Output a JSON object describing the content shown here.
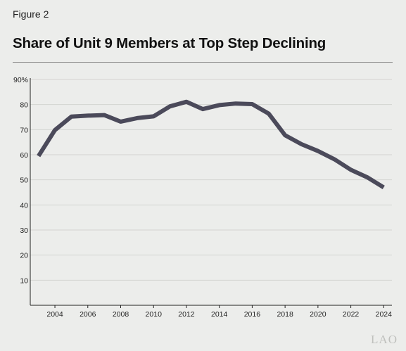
{
  "figure_label": "Figure 2",
  "watermark": "LAO",
  "chart_data": {
    "type": "line",
    "title": "Share of Unit 9 Members at Top Step Declining",
    "xlabel": "",
    "ylabel": "",
    "x": [
      2003,
      2004,
      2005,
      2006,
      2007,
      2008,
      2009,
      2010,
      2011,
      2012,
      2013,
      2014,
      2015,
      2016,
      2017,
      2018,
      2019,
      2020,
      2021,
      2022,
      2023,
      2024
    ],
    "series": [
      {
        "values": [
          59.5,
          69.8,
          75.2,
          75.6,
          75.8,
          73.2,
          74.6,
          75.3,
          79.3,
          81.1,
          78.2,
          79.8,
          80.4,
          80.2,
          76.4,
          67.8,
          64.2,
          61.5,
          58.2,
          54.0,
          51.0,
          47.0
        ],
        "color": "#4b4a5a"
      }
    ],
    "xlim": [
      2002.5,
      2024.5
    ],
    "ylim": [
      0,
      90
    ],
    "x_ticks": [
      "2004",
      "2006",
      "2008",
      "2010",
      "2012",
      "2014",
      "2016",
      "2018",
      "2020",
      "2022",
      "2024"
    ],
    "y_ticks": [
      "10",
      "20",
      "30",
      "40",
      "50",
      "60",
      "70",
      "80",
      "90%"
    ],
    "grid": true
  }
}
